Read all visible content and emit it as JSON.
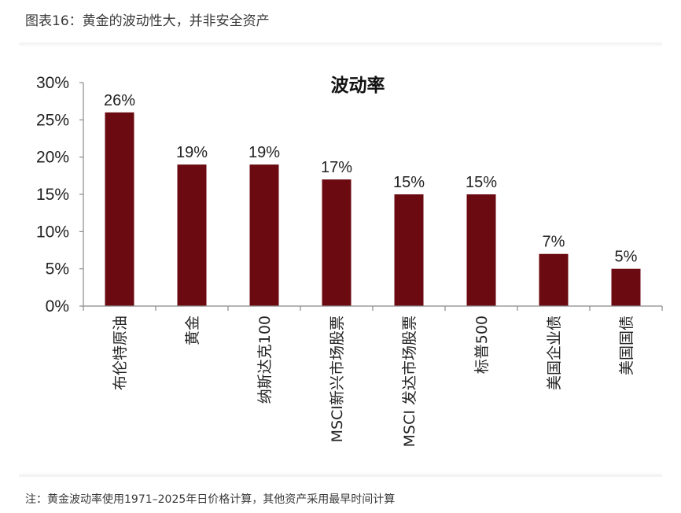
{
  "caption": "图表16：黄金的波动性大，并非安全资产",
  "note": "注：黄金波动率使用1971–2025年日价格计算，其他资产采用最早时间计算",
  "chart_data": {
    "type": "bar",
    "title": "波动率",
    "categories": [
      "布伦特原油",
      "黄金",
      "纳斯达克100",
      "MSCI新兴市场股票",
      "MSCI 发达市场股票",
      "标普500",
      "美国企业债",
      "美国国债"
    ],
    "values": [
      26,
      19,
      19,
      17,
      15,
      15,
      7,
      5
    ],
    "data_labels": [
      "26%",
      "19%",
      "19%",
      "17%",
      "15%",
      "15%",
      "7%",
      "5%"
    ],
    "ylim": [
      0,
      30
    ],
    "yticks": [
      0,
      5,
      10,
      15,
      20,
      25,
      30
    ],
    "ytick_labels": [
      "0%",
      "5%",
      "10%",
      "15%",
      "20%",
      "25%",
      "30%"
    ],
    "xlabel": "",
    "ylabel": "",
    "grid": false,
    "legend": "none",
    "bar_color": "#6b0a10",
    "axis_color": "#8a8a8a"
  }
}
